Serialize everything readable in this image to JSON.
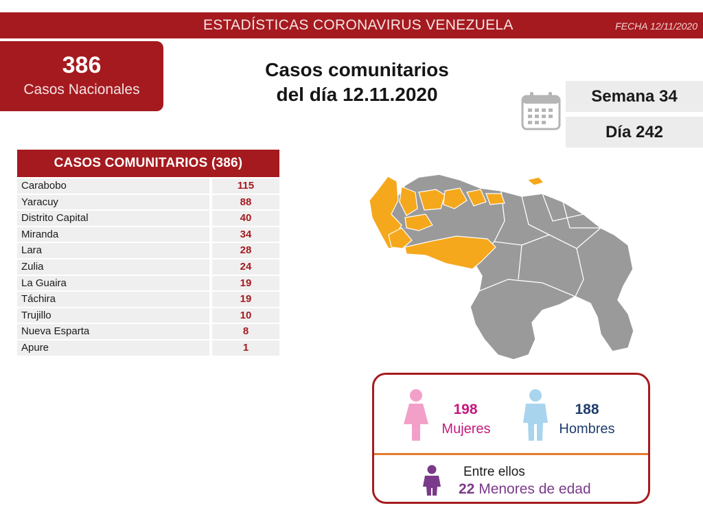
{
  "header": {
    "title": "ESTADÍSTICAS CORONAVIRUS VENEZUELA",
    "date": "FECHA 12/11/2020"
  },
  "national": {
    "count": "386",
    "label": "Casos Nacionales"
  },
  "headline": {
    "line1": "Casos comunitarios",
    "line2": "del día 12.11.2020"
  },
  "calendar": {
    "icon": "calendar-icon",
    "week": "Semana 34",
    "day": "Día 242"
  },
  "table": {
    "header": "CASOS COMUNITARIOS (386)",
    "rows": [
      {
        "state": "Carabobo",
        "cases": "115"
      },
      {
        "state": "Yaracuy",
        "cases": "88"
      },
      {
        "state": "Distrito Capital",
        "cases": "40"
      },
      {
        "state": "Miranda",
        "cases": "34"
      },
      {
        "state": "Lara",
        "cases": "28"
      },
      {
        "state": "Zulia",
        "cases": "24"
      },
      {
        "state": "La Guaira",
        "cases": "19"
      },
      {
        "state": "Táchira",
        "cases": "19"
      },
      {
        "state": "Trujillo",
        "cases": "10"
      },
      {
        "state": "Nueva Esparta",
        "cases": "8"
      },
      {
        "state": "Apure",
        "cases": "1"
      }
    ]
  },
  "map": {
    "icon": "venezuela-map",
    "highlight_color": "#f5a81c",
    "base_color": "#9a9a9a"
  },
  "gender": {
    "women_count": "198",
    "women_label": "Mujeres",
    "women_color": "#f2a0c8",
    "men_count": "188",
    "men_label": "Hombres",
    "men_color": "#a9d4ee",
    "minors_intro": "Entre ellos",
    "minors_count": "22",
    "minors_label": "Menores de edad",
    "minors_color": "#7b3a8a"
  },
  "colors": {
    "brand_red": "#a51a1f",
    "divider_orange": "#e47a2c"
  }
}
